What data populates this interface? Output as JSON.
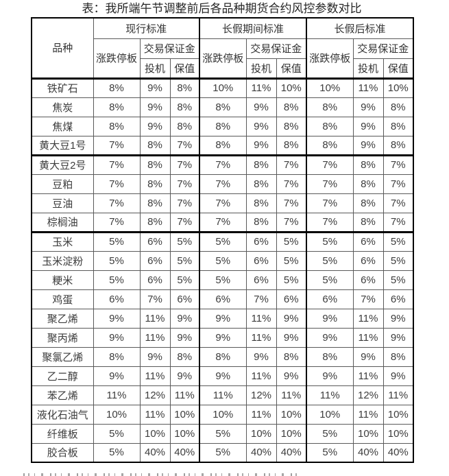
{
  "page": {
    "title": "表：我所端午节调整前后各品种期货合约风控参数对比",
    "truncated_text_visible": true
  },
  "colors": {
    "background": "#ffffff",
    "text": "#3c3c3c",
    "title_text": "#262626",
    "border_thin": "#595959",
    "border_thick": "#000000"
  },
  "table": {
    "product_header": "品种",
    "sections": [
      "现行标准",
      "长假期间标准",
      "长假后标准"
    ],
    "limit_header": "涨跌停板",
    "margin_header": "交易保证金",
    "spec_header": "投机",
    "hedge_header": "保值",
    "rows": [
      {
        "product": "铁矿石",
        "values": [
          "8%",
          "9%",
          "8%",
          "10%",
          "11%",
          "10%",
          "10%",
          "11%",
          "10%"
        ],
        "group_end": false
      },
      {
        "product": "焦炭",
        "values": [
          "8%",
          "9%",
          "8%",
          "8%",
          "9%",
          "8%",
          "8%",
          "9%",
          "8%"
        ],
        "group_end": false
      },
      {
        "product": "焦煤",
        "values": [
          "8%",
          "9%",
          "8%",
          "8%",
          "9%",
          "8%",
          "8%",
          "9%",
          "8%"
        ],
        "group_end": false
      },
      {
        "product": "黄大豆1号",
        "values": [
          "7%",
          "8%",
          "7%",
          "8%",
          "9%",
          "8%",
          "8%",
          "9%",
          "8%"
        ],
        "group_end": true
      },
      {
        "product": "黄大豆2号",
        "values": [
          "7%",
          "8%",
          "7%",
          "7%",
          "8%",
          "7%",
          "7%",
          "8%",
          "7%"
        ],
        "group_end": false
      },
      {
        "product": "豆粕",
        "values": [
          "7%",
          "8%",
          "7%",
          "7%",
          "8%",
          "7%",
          "7%",
          "8%",
          "7%"
        ],
        "group_end": false
      },
      {
        "product": "豆油",
        "values": [
          "7%",
          "8%",
          "7%",
          "7%",
          "8%",
          "7%",
          "7%",
          "8%",
          "7%"
        ],
        "group_end": false
      },
      {
        "product": "棕榈油",
        "values": [
          "7%",
          "8%",
          "7%",
          "7%",
          "8%",
          "7%",
          "7%",
          "8%",
          "7%"
        ],
        "group_end": true
      },
      {
        "product": "玉米",
        "values": [
          "5%",
          "6%",
          "5%",
          "5%",
          "6%",
          "5%",
          "5%",
          "6%",
          "5%"
        ],
        "group_end": false
      },
      {
        "product": "玉米淀粉",
        "values": [
          "5%",
          "6%",
          "5%",
          "5%",
          "6%",
          "5%",
          "5%",
          "6%",
          "5%"
        ],
        "group_end": false
      },
      {
        "product": "粳米",
        "values": [
          "5%",
          "6%",
          "5%",
          "5%",
          "6%",
          "5%",
          "5%",
          "6%",
          "5%"
        ],
        "group_end": false
      },
      {
        "product": "鸡蛋",
        "values": [
          "6%",
          "7%",
          "6%",
          "6%",
          "7%",
          "6%",
          "6%",
          "7%",
          "6%"
        ],
        "group_end": false
      },
      {
        "product": "聚乙烯",
        "values": [
          "9%",
          "11%",
          "9%",
          "9%",
          "11%",
          "9%",
          "9%",
          "11%",
          "9%"
        ],
        "group_end": false
      },
      {
        "product": "聚丙烯",
        "values": [
          "9%",
          "11%",
          "9%",
          "9%",
          "11%",
          "9%",
          "9%",
          "11%",
          "9%"
        ],
        "group_end": false
      },
      {
        "product": "聚氯乙烯",
        "values": [
          "8%",
          "9%",
          "8%",
          "8%",
          "9%",
          "8%",
          "8%",
          "9%",
          "8%"
        ],
        "group_end": false
      },
      {
        "product": "乙二醇",
        "values": [
          "9%",
          "11%",
          "9%",
          "9%",
          "11%",
          "9%",
          "9%",
          "11%",
          "9%"
        ],
        "group_end": false
      },
      {
        "product": "苯乙烯",
        "values": [
          "11%",
          "12%",
          "11%",
          "11%",
          "12%",
          "11%",
          "11%",
          "12%",
          "11%"
        ],
        "group_end": false
      },
      {
        "product": "液化石油气",
        "values": [
          "10%",
          "11%",
          "10%",
          "10%",
          "11%",
          "10%",
          "10%",
          "11%",
          "10%"
        ],
        "group_end": false
      },
      {
        "product": "纤维板",
        "values": [
          "5%",
          "10%",
          "10%",
          "5%",
          "10%",
          "10%",
          "5%",
          "10%",
          "10%"
        ],
        "group_end": false
      },
      {
        "product": "胶合板",
        "values": [
          "5%",
          "40%",
          "40%",
          "5%",
          "40%",
          "40%",
          "5%",
          "40%",
          "40%"
        ],
        "group_end": false
      }
    ]
  }
}
